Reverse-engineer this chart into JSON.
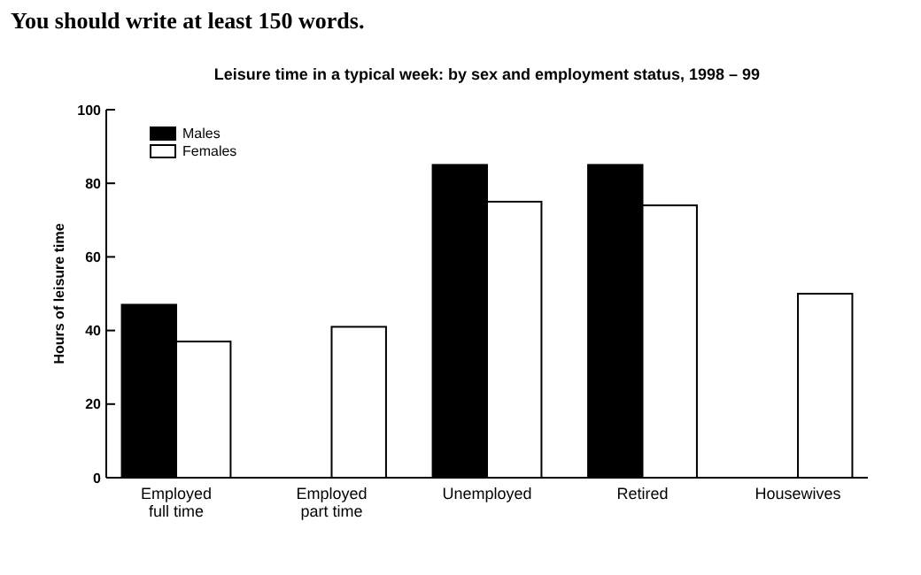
{
  "chart_data": {
    "type": "bar",
    "title": "Leisure time in a typical week: by sex and employment status, 1998 – 99",
    "annotations": [
      "You should write at least 150 words."
    ],
    "ylabel": "Hours of leisure time",
    "categories": [
      "Employed full time",
      "Employed part time",
      "Unemployed",
      "Retired",
      "Housewives"
    ],
    "series": [
      {
        "name": "Males",
        "color": "#000000",
        "values": [
          47,
          null,
          85,
          85,
          null
        ]
      },
      {
        "name": "Females",
        "color": "#ffffff",
        "values": [
          37,
          41,
          75,
          74,
          50
        ]
      }
    ],
    "ylim": [
      0,
      100
    ],
    "yticks": [
      0,
      20,
      40,
      60,
      80,
      100
    ],
    "grid": false,
    "legend": "top left"
  }
}
